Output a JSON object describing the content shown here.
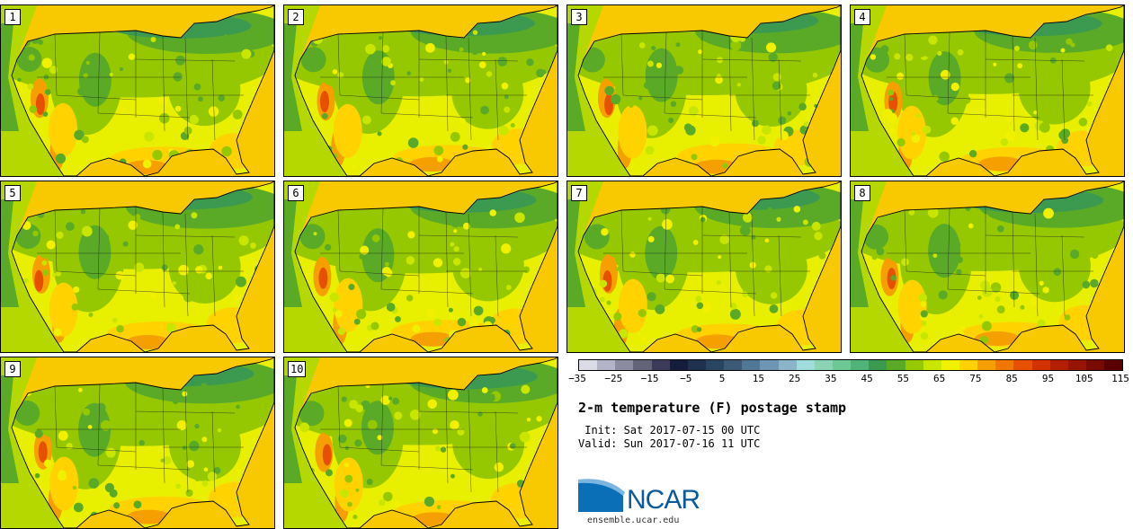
{
  "panels": [
    {
      "number": "1"
    },
    {
      "number": "2"
    },
    {
      "number": "3"
    },
    {
      "number": "4"
    },
    {
      "number": "5"
    },
    {
      "number": "6"
    },
    {
      "number": "7"
    },
    {
      "number": "8"
    },
    {
      "number": "9"
    },
    {
      "number": "10"
    }
  ],
  "colorbar": {
    "colors": [
      "#dcdce6",
      "#b4b4c8",
      "#8c8ca0",
      "#646478",
      "#3c3c5a",
      "#141e3c",
      "#1e3250",
      "#284664",
      "#3c5a78",
      "#507896",
      "#6e96b4",
      "#8cb4c8",
      "#a0dcdc",
      "#8cd2b4",
      "#6ec896",
      "#50b478",
      "#3c9a50",
      "#5aaa28",
      "#96c800",
      "#c8e600",
      "#f0f000",
      "#ffd200",
      "#f5a000",
      "#f07800",
      "#e65000",
      "#d23200",
      "#b41e00",
      "#961400",
      "#780a00",
      "#5a0000"
    ],
    "tick_labels": [
      "−35",
      "−25",
      "−15",
      "−5",
      "5",
      "15",
      "25",
      "35",
      "45",
      "55",
      "65",
      "75",
      "85",
      "95",
      "105",
      "115"
    ]
  },
  "title": "2-m temperature (F) postage stamp",
  "init": " Init: Sat 2017-07-15 00 UTC",
  "valid": "Valid: Sun 2017-07-16 11 UTC",
  "logo": {
    "text": "NCAR"
  },
  "url": "ensemble.ucar.edu"
}
